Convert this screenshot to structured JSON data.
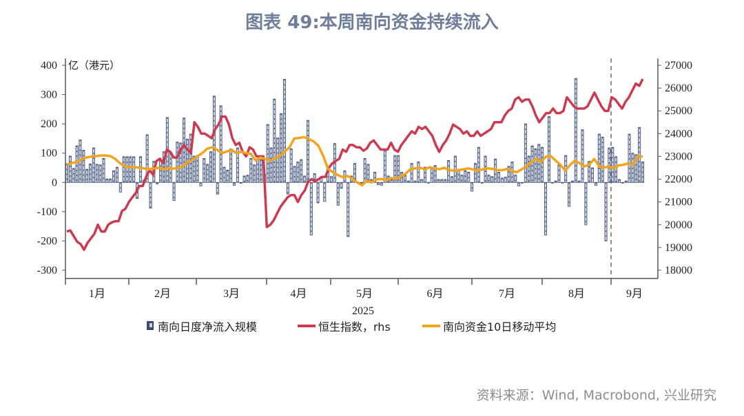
{
  "title": "图表 49:本周南向资金持续流入",
  "source": "资料来源：Wind, Macrobond, 兴业研究",
  "chart_data": {
    "type": "bar+line",
    "title": "图表 49:本周南向资金持续流入",
    "left_axis": {
      "unit_label": "亿（港元）",
      "ylim": [
        -300,
        400
      ],
      "ticks": [
        "400",
        "300",
        "200",
        "100",
        "0",
        "-100",
        "-200",
        "-300"
      ]
    },
    "right_axis": {
      "ylim": [
        18000,
        27000
      ],
      "ticks": [
        "27000",
        "26000",
        "25000",
        "24000",
        "23000",
        "22000",
        "21000",
        "20000",
        "19000",
        "18000"
      ]
    },
    "x_axis": {
      "year_label": "2025",
      "months": [
        "1月",
        "2月",
        "3月",
        "4月",
        "5月",
        "6月",
        "7月",
        "8月",
        "9月"
      ],
      "range": [
        "2025-01",
        "2025-09"
      ]
    },
    "grid": false,
    "legend_position": "bottom",
    "colors": {
      "bars_fill": "#c9d1e2",
      "bars_edge": "#3b4a6e",
      "hsi": "#cc3a4f",
      "ma10": "#f2a51c",
      "title": "#6f7e99"
    },
    "series": [
      {
        "name": "南向日度净流入规模",
        "type": "bar",
        "axis": "left",
        "values": [
          63,
          90,
          48,
          125,
          145,
          110,
          45,
          63,
          118,
          62,
          60,
          82,
          12,
          12,
          40,
          52,
          -33,
          88,
          88,
          88,
          88,
          -55,
          88,
          8,
          163,
          -88,
          72,
          -5,
          75,
          105,
          222,
          100,
          -62,
          138,
          135,
          220,
          148,
          165,
          90,
          92,
          -12,
          82,
          62,
          105,
          295,
          -40,
          262,
          52,
          42,
          115,
          -10,
          118,
          -3,
          22,
          25,
          82,
          60,
          80,
          78,
          28,
          198,
          118,
          285,
          152,
          235,
          352,
          -40,
          115,
          55,
          70,
          78,
          22,
          212,
          -180,
          30,
          -70,
          20,
          -65,
          55,
          20,
          133,
          -78,
          -20,
          40,
          -185,
          22,
          65,
          0,
          0,
          82,
          62,
          10,
          35,
          -8,
          -10,
          110,
          22,
          10,
          92,
          92,
          35,
          25,
          5,
          65,
          5,
          70,
          10,
          52,
          0,
          50,
          58,
          10,
          10,
          10,
          75,
          20,
          90,
          45,
          25,
          40,
          35,
          -30,
          65,
          120,
          0,
          90,
          25,
          20,
          80,
          35,
          15,
          18,
          55,
          70,
          25,
          -12,
          0,
          200,
          90,
          125,
          115,
          130,
          120,
          -180,
          225,
          0,
          5,
          60,
          0,
          92,
          -82,
          5,
          355,
          5,
          180,
          -145,
          72,
          50,
          -10,
          165,
          155,
          -200,
          118,
          120,
          88,
          10,
          0,
          5,
          165,
          100,
          95,
          188,
          70
        ]
      },
      {
        "name": "恒生指数，rhs",
        "type": "line",
        "axis": "right",
        "values": [
          19700,
          19750,
          19500,
          19250,
          19150,
          18900,
          19200,
          19400,
          19600,
          20000,
          19700,
          19700,
          20000,
          20100,
          20150,
          20150,
          20600,
          20700,
          21000,
          21200,
          21400,
          21700,
          21700,
          22100,
          22400,
          22200,
          22800,
          22900,
          22700,
          23300,
          23200,
          22950,
          22950,
          23300,
          23500,
          23300,
          23150,
          24500,
          24300,
          24000,
          24000,
          23900,
          23800,
          24200,
          24400,
          24750,
          24750,
          24400,
          23800,
          23500,
          23600,
          23200,
          23000,
          23400,
          23300,
          23000,
          23000,
          23000,
          19900,
          20000,
          20200,
          20500,
          20800,
          21000,
          21200,
          21300,
          21300,
          21000,
          21300,
          21500,
          21900,
          22000,
          21900,
          22000,
          22100,
          22100,
          22500,
          22700,
          22800,
          22900,
          23300,
          23200,
          23500,
          23500,
          23400,
          23400,
          23250,
          23350,
          23600,
          23700,
          23500,
          23300,
          23300,
          23300,
          23600,
          23300,
          23200,
          23500,
          23700,
          23900,
          24100,
          24000,
          24300,
          24200,
          24300,
          24100,
          23900,
          23500,
          23200,
          23500,
          23700,
          24000,
          24400,
          24300,
          24200,
          24000,
          24100,
          23900,
          23900,
          24100,
          23900,
          24000,
          24100,
          24200,
          24500,
          24500,
          24500,
          24800,
          25000,
          25100,
          25500,
          25600,
          25400,
          25500,
          25500,
          25200,
          24800,
          24500,
          24700,
          24900,
          24900,
          25100,
          24900,
          24900,
          25000,
          25600,
          25400,
          25200,
          25100,
          25100,
          25100,
          25200,
          25500,
          25800,
          25500,
          25200,
          25000,
          25000,
          25600,
          25500,
          25300,
          25100,
          25400,
          25600,
          25900,
          26200,
          26100,
          26400
        ]
      },
      {
        "name": "南向资金10日移动平均",
        "type": "line",
        "axis": "left",
        "values": [
          62,
          66,
          70,
          78,
          85,
          88,
          90,
          92,
          92,
          90,
          80,
          65,
          55,
          53,
          52,
          50,
          48,
          45,
          48,
          50,
          45,
          50,
          47,
          50,
          55,
          70,
          78,
          90,
          100,
          115,
          120,
          112,
          100,
          105,
          112,
          100,
          105,
          100,
          98,
          75,
          85,
          80,
          75,
          83,
          90,
          105,
          120,
          150,
          152,
          155,
          148,
          140,
          125,
          90,
          45,
          35,
          25,
          18,
          22,
          12,
          0,
          -10,
          5,
          0,
          10,
          12,
          8,
          15,
          12,
          20,
          30,
          45,
          48,
          50,
          45,
          52,
          48,
          45,
          50,
          42,
          40,
          42,
          45,
          48,
          44,
          40,
          45,
          48,
          46,
          42,
          42,
          46,
          38,
          35,
          45,
          55,
          70,
          80,
          70,
          88,
          90,
          75,
          60,
          40,
          60,
          75,
          65,
          55,
          62,
          80,
          55,
          50,
          55,
          48,
          58,
          60,
          65,
          60,
          90,
          88
        ]
      }
    ]
  }
}
